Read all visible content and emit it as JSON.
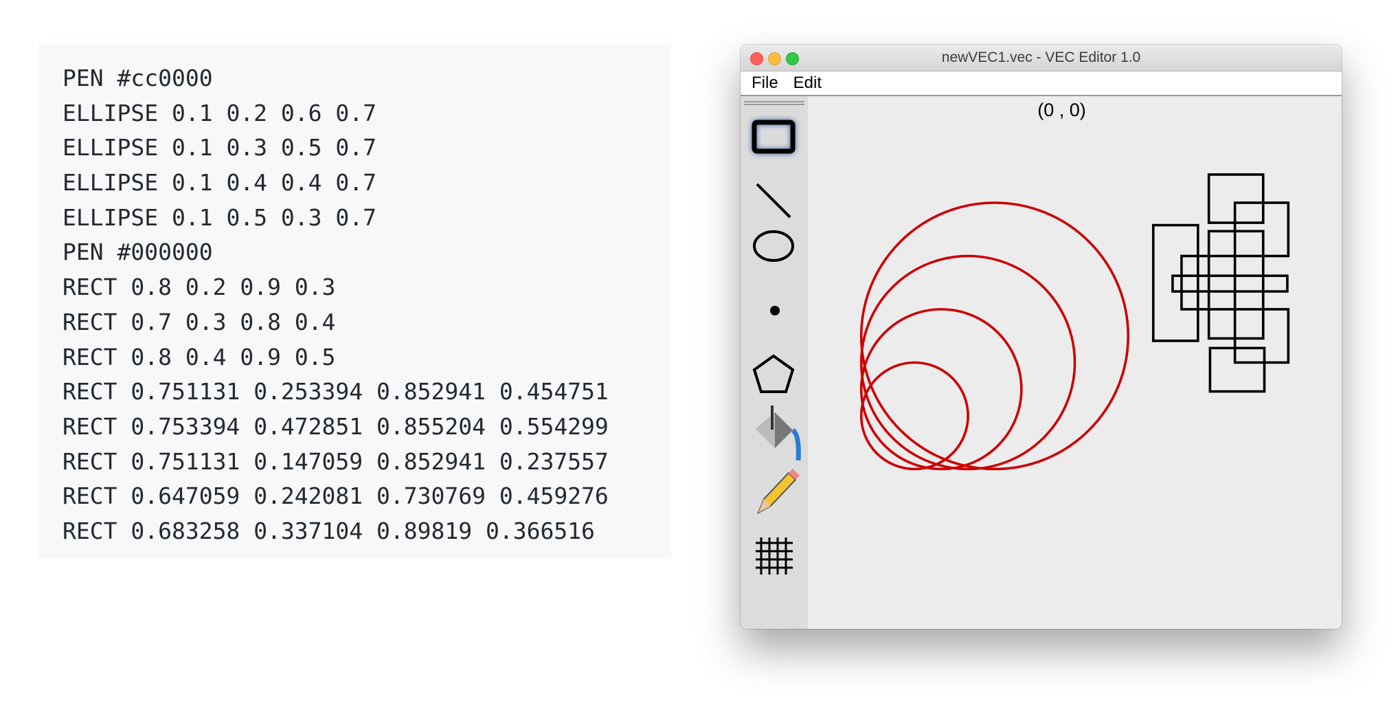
{
  "code_block": {
    "lines": [
      {
        "command": "PEN",
        "args": [
          "#cc0000"
        ]
      },
      {
        "command": "ELLIPSE",
        "args": [
          0.1,
          0.2,
          0.6,
          0.7
        ]
      },
      {
        "command": "ELLIPSE",
        "args": [
          0.1,
          0.3,
          0.5,
          0.7
        ]
      },
      {
        "command": "ELLIPSE",
        "args": [
          0.1,
          0.4,
          0.4,
          0.7
        ]
      },
      {
        "command": "ELLIPSE",
        "args": [
          0.1,
          0.5,
          0.3,
          0.7
        ]
      },
      {
        "command": "PEN",
        "args": [
          "#000000"
        ]
      },
      {
        "command": "RECT",
        "args": [
          0.8,
          0.2,
          0.9,
          0.3
        ]
      },
      {
        "command": "RECT",
        "args": [
          0.7,
          0.3,
          0.8,
          0.4
        ]
      },
      {
        "command": "RECT",
        "args": [
          0.8,
          0.4,
          0.9,
          0.5
        ]
      },
      {
        "command": "RECT",
        "args": [
          0.751131,
          0.253394,
          0.852941,
          0.454751
        ]
      },
      {
        "command": "RECT",
        "args": [
          0.753394,
          0.472851,
          0.855204,
          0.554299
        ]
      },
      {
        "command": "RECT",
        "args": [
          0.751131,
          0.147059,
          0.852941,
          0.237557
        ]
      },
      {
        "command": "RECT",
        "args": [
          0.647059,
          0.242081,
          0.730769,
          0.459276
        ]
      },
      {
        "command": "RECT",
        "args": [
          0.683258,
          0.337104,
          0.89819,
          0.366516
        ]
      }
    ]
  },
  "window": {
    "title": "newVEC1.vec - VEC Editor 1.0",
    "menu": [
      "File",
      "Edit"
    ],
    "coordinates": "(0 , 0)"
  }
}
